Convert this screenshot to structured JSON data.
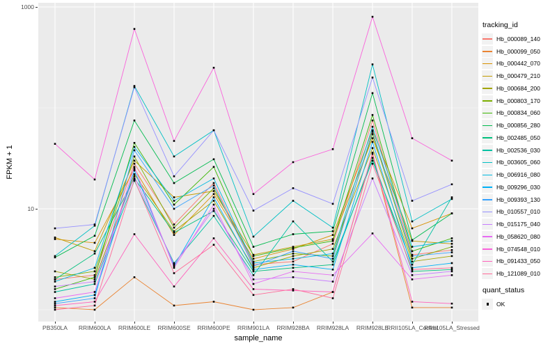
{
  "chart_data": {
    "type": "line",
    "title": "",
    "xlabel": "sample_name",
    "ylabel": "FPKM + 1",
    "y_scale": "log10",
    "grid": true,
    "panel_background": "#EBEBEB",
    "gridline_color": "#FFFFFF",
    "point_color": "#000000",
    "point_shape": "square",
    "y_axis": {
      "ticks": [
        {
          "label": "1000",
          "value": 1000
        },
        {
          "label": "10",
          "value": 10
        }
      ],
      "minor_gridlines": [
        100,
        1
      ],
      "range_approx": [
        0.7,
        1100
      ]
    },
    "categories": [
      "PB350LA",
      "RRIM600LA",
      "RRIM600LE",
      "RRIM600SE",
      "RRIM600PE",
      "RRIM901LA",
      "RRIM928BA",
      "RRIM928LA",
      "RRIM928LE",
      "RRII105LA_Control",
      "RRII105LA_Stressed"
    ],
    "legend": {
      "title": "tracking_id",
      "position": "right",
      "quant_title": "quant_status",
      "quant_label": "OK",
      "quant_marker": "black-square-icon"
    },
    "series": [
      {
        "name": "Hb_000089_140",
        "color": "#F8766D",
        "values": [
          2.0,
          2.2,
          28,
          7.0,
          18,
          2.8,
          3.0,
          4.5,
          75,
          3.5,
          3.9
        ]
      },
      {
        "name": "Hb_000099_050",
        "color": "#EA8331",
        "values": [
          1.05,
          1.0,
          2.1,
          1.1,
          1.2,
          1.0,
          1.05,
          1.5,
          35,
          1.05,
          1.05
        ]
      },
      {
        "name": "Hb_000442_070",
        "color": "#D89000",
        "values": [
          5.0,
          4.6,
          25,
          5.5,
          14,
          3.2,
          4.0,
          5.5,
          60,
          6.4,
          9.0
        ]
      },
      {
        "name": "Hb_000479_210",
        "color": "#C09B00",
        "values": [
          5.2,
          3.8,
          30,
          13,
          15,
          3.5,
          4.2,
          5.0,
          50,
          4.8,
          4.5
        ]
      },
      {
        "name": "Hb_000684_200",
        "color": "#A3A500",
        "values": [
          2.4,
          2.0,
          22,
          6.0,
          12,
          2.6,
          3.4,
          4.0,
          40,
          3.0,
          3.4
        ]
      },
      {
        "name": "Hb_000803_170",
        "color": "#7CAE00",
        "values": [
          2.1,
          2.4,
          33,
          6.5,
          16,
          3.0,
          3.6,
          3.4,
          55,
          3.2,
          4.2
        ]
      },
      {
        "name": "Hb_000834_060",
        "color": "#39B600",
        "values": [
          1.6,
          2.1,
          45,
          11,
          26,
          3.4,
          4.1,
          4.8,
          85,
          3.8,
          5.1
        ]
      },
      {
        "name": "Hb_000856_280",
        "color": "#00BB4E",
        "values": [
          3.3,
          5.4,
          75,
          18,
          31,
          4.2,
          5.6,
          6.0,
          140,
          4.9,
          9.0
        ]
      },
      {
        "name": "Hb_002485_050",
        "color": "#00BF7D",
        "values": [
          2.0,
          3.6,
          20,
          5.8,
          9.5,
          2.4,
          2.6,
          2.8,
          32,
          2.4,
          2.5
        ]
      },
      {
        "name": "Hb_002536_030",
        "color": "#00C1A3",
        "values": [
          1.5,
          1.8,
          19,
          2.9,
          8.5,
          2.2,
          7.5,
          3.0,
          30,
          2.8,
          13
        ]
      },
      {
        "name": "Hb_003605_060",
        "color": "#00BFC4",
        "values": [
          3.4,
          6.8,
          165,
          33,
          60,
          5.3,
          12,
          6.5,
          270,
          7.5,
          12.5
        ]
      },
      {
        "name": "Hb_006916_080",
        "color": "#00BAE0",
        "values": [
          1.9,
          2.6,
          41,
          12,
          20,
          2.9,
          3.2,
          3.6,
          65,
          4.2,
          4.8
        ]
      },
      {
        "name": "Hb_009296_030",
        "color": "#00B0F6",
        "values": [
          1.2,
          1.4,
          24,
          2.7,
          13,
          2.5,
          2.8,
          2.5,
          46,
          2.6,
          2.9
        ]
      },
      {
        "name": "Hb_009393_130",
        "color": "#35A2FF",
        "values": [
          1.15,
          1.3,
          38,
          10,
          17,
          2.7,
          3.8,
          3.2,
          58,
          3.4,
          3.7
        ]
      },
      {
        "name": "Hb_010557_010",
        "color": "#9590FF",
        "values": [
          6.4,
          7.0,
          160,
          21,
          60,
          9.6,
          16,
          11.2,
          200,
          12.0,
          17.5
        ]
      },
      {
        "name": "Hb_015175_040",
        "color": "#C77CFF",
        "values": [
          1.7,
          1.9,
          21,
          2.8,
          10,
          2.0,
          2.1,
          1.9,
          20,
          2.2,
          2.4
        ]
      },
      {
        "name": "Hb_058620_080",
        "color": "#E76BF3",
        "values": [
          1.3,
          1.5,
          26,
          2.6,
          11,
          1.8,
          2.4,
          2.2,
          5.7,
          2.0,
          2.2
        ]
      },
      {
        "name": "Hb_074548_010",
        "color": "#FA62DB",
        "values": [
          44,
          19.5,
          605,
          47,
          250,
          14,
          29,
          39,
          800,
          50,
          30
        ]
      },
      {
        "name": "Hb_091433_050",
        "color": "#FF62BC",
        "values": [
          1.1,
          1.2,
          5.6,
          1.7,
          5.1,
          1.6,
          1.55,
          1.5,
          36,
          1.2,
          1.15
        ]
      },
      {
        "name": "Hb_121089_010",
        "color": "#FF6A98",
        "values": [
          1.0,
          1.1,
          19.5,
          2.3,
          4.4,
          1.4,
          1.6,
          1.3,
          28,
          2.5,
          2.6
        ]
      }
    ]
  }
}
